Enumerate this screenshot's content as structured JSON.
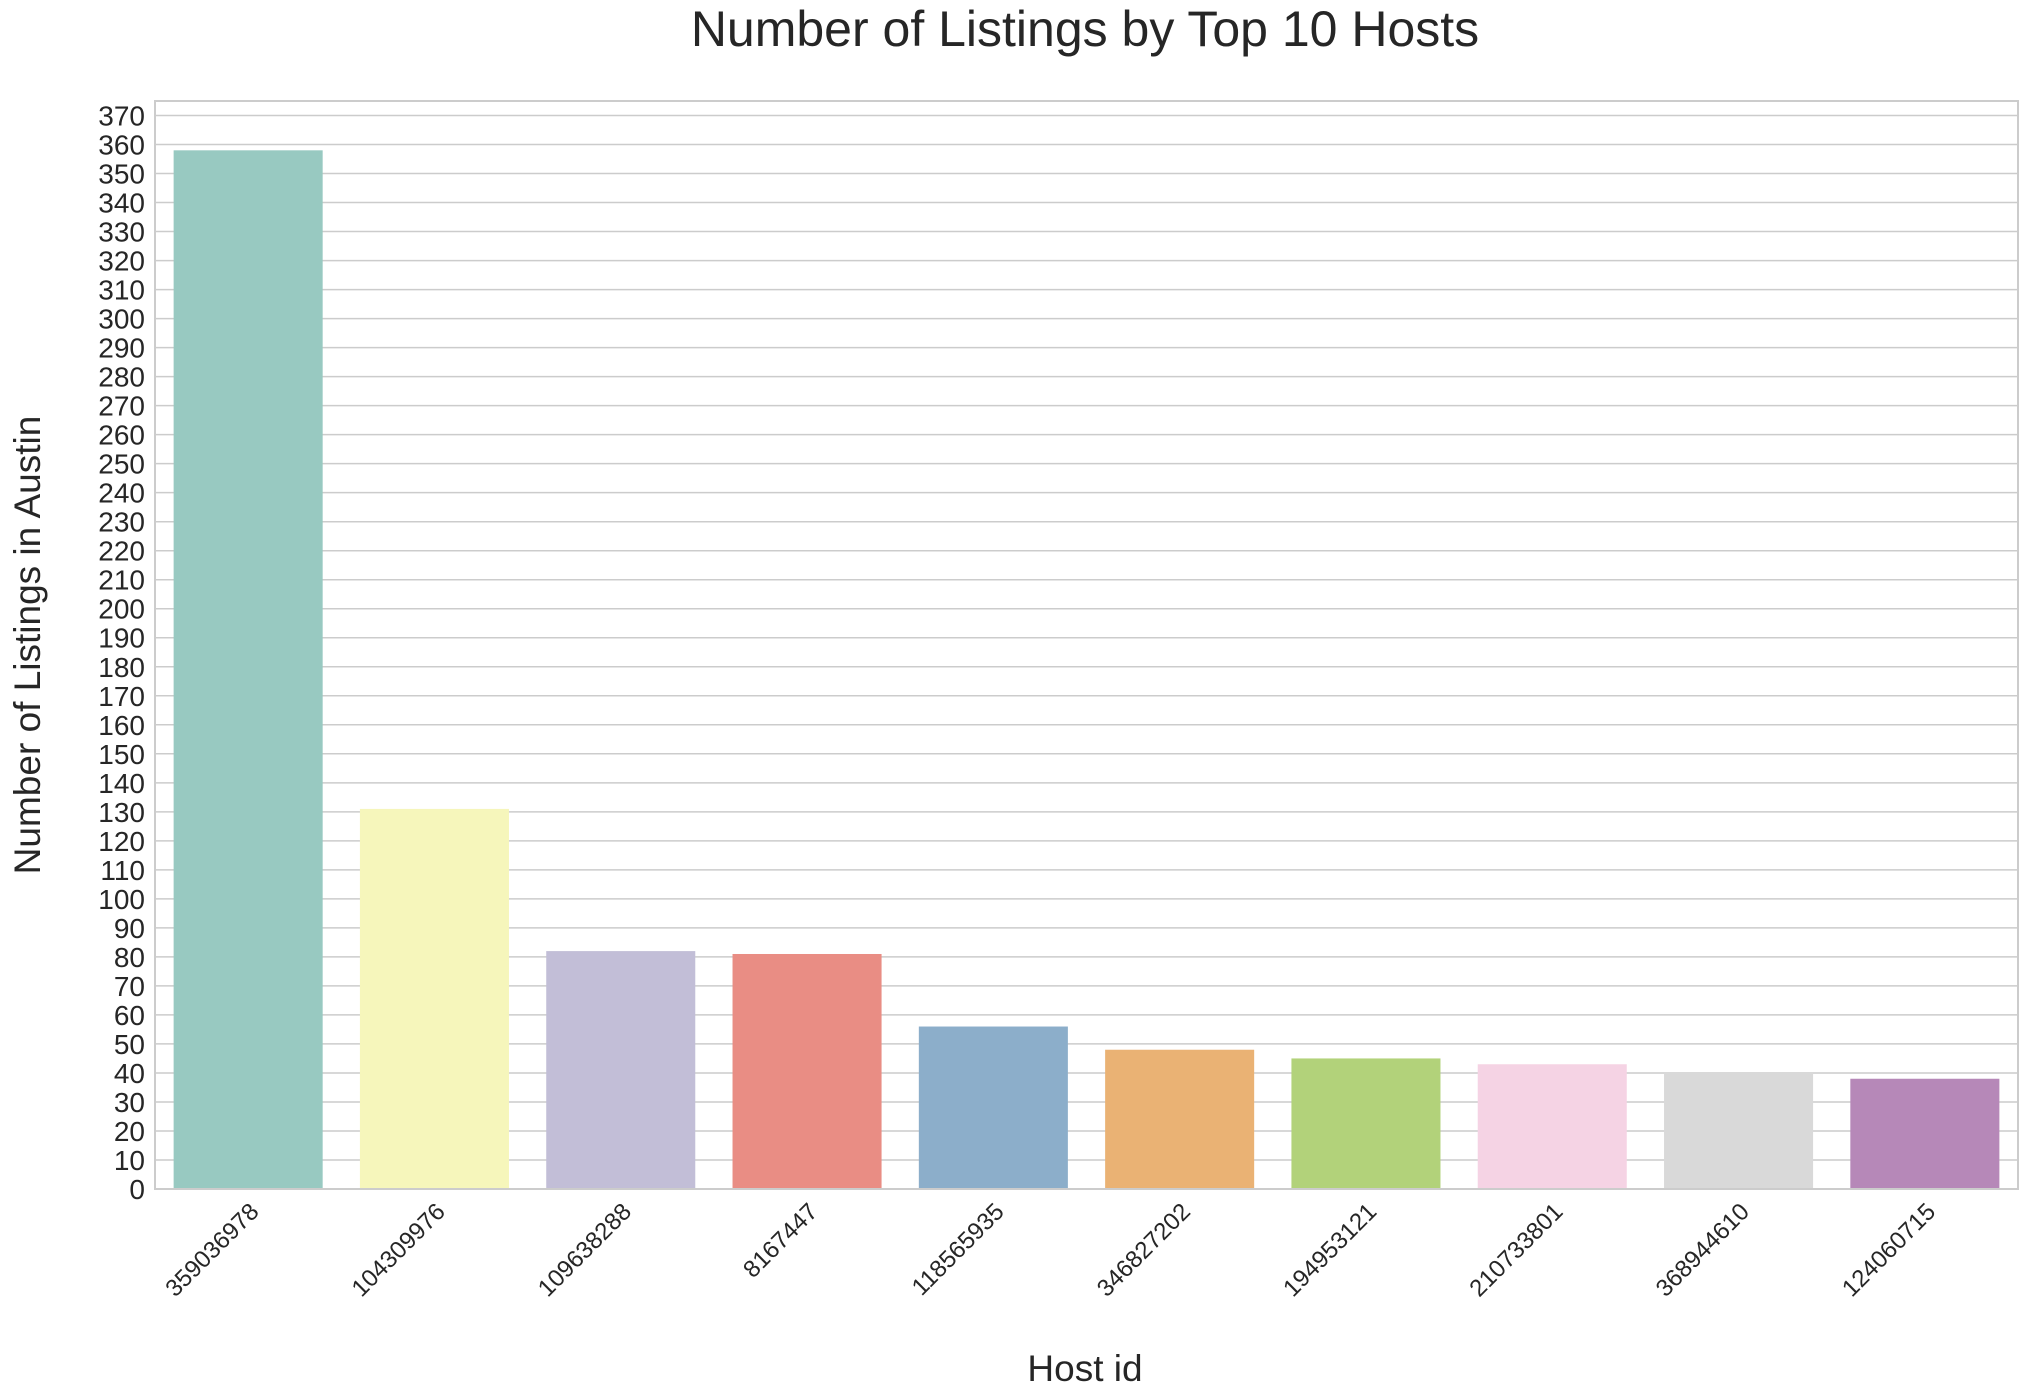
{
  "chart_data": {
    "type": "bar",
    "title": "Number of Listings by Top 10 Hosts",
    "xlabel": "Host id",
    "ylabel": "Number of Listings in Austin",
    "categories": [
      "359036978",
      "104309976",
      "109638288",
      "8167447",
      "118565935",
      "346827202",
      "194953121",
      "210733801",
      "368944610",
      "124060715"
    ],
    "values": [
      358,
      131,
      82,
      81,
      56,
      48,
      45,
      43,
      40,
      38
    ],
    "colors": [
      "#98c9c1",
      "#f6f6bb",
      "#c2bed7",
      "#e98d84",
      "#8caeca",
      "#eab274",
      "#b2d27a",
      "#f5d3e4",
      "#d9d9d9",
      "#b688b8"
    ],
    "ylim": [
      0,
      375
    ],
    "ytick_step": 10,
    "grid": true,
    "legend": "none"
  }
}
